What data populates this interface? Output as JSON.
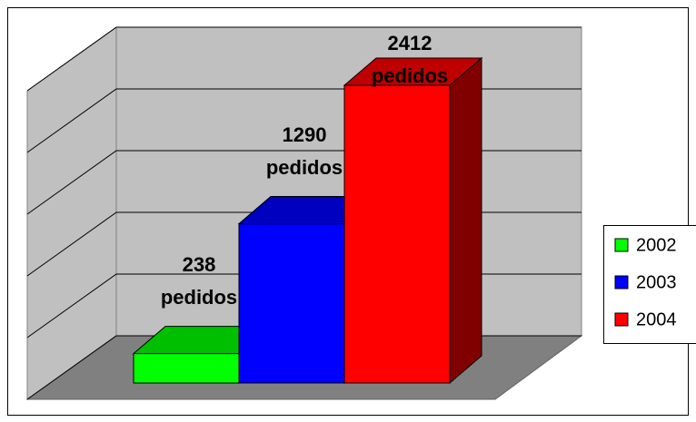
{
  "chart_data": {
    "type": "bar",
    "series": [
      {
        "name": "2002",
        "color": "#00ff00",
        "values": [
          238
        ],
        "value_labels": [
          "238 pedidos"
        ]
      },
      {
        "name": "2003",
        "color": "#0000ff",
        "values": [
          1290
        ],
        "value_labels": [
          "1290 pedidos"
        ]
      },
      {
        "name": "2004",
        "color": "#ff0000",
        "values": [
          2412
        ],
        "value_labels": [
          "2412 pedidos"
        ]
      }
    ],
    "ylim": [
      0,
      2500
    ],
    "yticks": [
      0,
      500,
      1000,
      1500,
      2000,
      2500
    ],
    "grid": true,
    "legend": "right"
  }
}
